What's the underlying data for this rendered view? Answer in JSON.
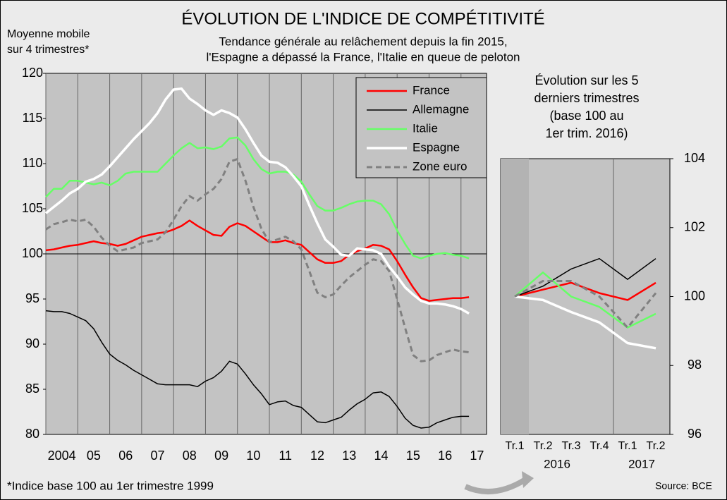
{
  "footnote": "*Indice base 100 au 1er trimestre 1999",
  "source": "Source: BCE",
  "chart_data": [
    {
      "type": "line",
      "title": "ÉVOLUTION DE L'INDICE DE COMPÉTITIVITÉ",
      "subtitle": [
        "Tendance générale au relâchement depuis la fin 2015,",
        "l'Espagne a dépassé la France, l'Italie en queue de peloton"
      ],
      "y_label": [
        "Moyenne mobile",
        "sur 4 trimestres*"
      ],
      "x": [
        2004,
        2004.25,
        2004.5,
        2004.75,
        2005,
        2005.25,
        2005.5,
        2005.75,
        2006,
        2006.25,
        2006.5,
        2006.75,
        2007,
        2007.25,
        2007.5,
        2007.75,
        2008,
        2008.25,
        2008.5,
        2008.75,
        2009,
        2009.25,
        2009.5,
        2009.75,
        2010,
        2010.25,
        2010.5,
        2010.75,
        2011,
        2011.25,
        2011.5,
        2011.75,
        2012,
        2012.25,
        2012.5,
        2012.75,
        2013,
        2013.25,
        2013.5,
        2013.75,
        2014,
        2014.25,
        2014.5,
        2014.75,
        2015,
        2015.25,
        2015.5,
        2015.75,
        2016,
        2016.25,
        2016.5,
        2016.75,
        2017,
        2017.25
      ],
      "xlim": [
        2004,
        2017.8
      ],
      "xticks": [
        {
          "value": 2004,
          "label": "2004"
        },
        {
          "value": 2005,
          "label": "05"
        },
        {
          "value": 2006,
          "label": "06"
        },
        {
          "value": 2007,
          "label": "07"
        },
        {
          "value": 2008,
          "label": "08"
        },
        {
          "value": 2009,
          "label": "09"
        },
        {
          "value": 2010,
          "label": "10"
        },
        {
          "value": 2011,
          "label": "11"
        },
        {
          "value": 2012,
          "label": "12"
        },
        {
          "value": 2013,
          "label": "13"
        },
        {
          "value": 2014,
          "label": "14"
        },
        {
          "value": 2015,
          "label": "15"
        },
        {
          "value": 2016,
          "label": "16"
        },
        {
          "value": 2017,
          "label": "17"
        }
      ],
      "ylim": [
        80,
        120
      ],
      "yticks": [
        80,
        85,
        90,
        95,
        100,
        105,
        110,
        115,
        120
      ],
      "hline": 100,
      "legend": "upper right",
      "series": [
        {
          "name": "France",
          "color": "#ff0000",
          "style": "solid",
          "values": [
            100.4,
            100.5,
            100.7,
            100.9,
            101.0,
            101.2,
            101.4,
            101.2,
            101.1,
            100.9,
            101.1,
            101.5,
            101.9,
            102.1,
            102.3,
            102.4,
            102.7,
            103.1,
            103.7,
            103.1,
            102.6,
            102.1,
            102.0,
            103.0,
            103.4,
            103.1,
            102.5,
            101.9,
            101.3,
            101.3,
            101.5,
            101.2,
            101.0,
            100.2,
            99.4,
            99.0,
            99.0,
            99.2,
            99.9,
            100.3,
            100.6,
            101.0,
            100.9,
            100.5,
            99.2,
            97.7,
            96.3,
            95.1,
            94.8,
            94.9,
            95.0,
            95.1,
            95.1,
            95.2
          ]
        },
        {
          "name": "Allemagne",
          "color": "#000000",
          "style": "thin",
          "values": [
            93.7,
            93.6,
            93.6,
            93.4,
            93.0,
            92.6,
            91.7,
            90.2,
            88.9,
            88.2,
            87.7,
            87.1,
            86.6,
            86.1,
            85.6,
            85.5,
            85.5,
            85.5,
            85.5,
            85.3,
            85.9,
            86.3,
            87.0,
            88.1,
            87.8,
            86.7,
            85.5,
            84.5,
            83.3,
            83.6,
            83.7,
            83.2,
            83.0,
            82.2,
            81.4,
            81.3,
            81.6,
            81.9,
            82.7,
            83.4,
            83.9,
            84.6,
            84.7,
            84.2,
            83.1,
            81.8,
            81.0,
            80.7,
            80.8,
            81.3,
            81.6,
            81.9,
            82.0,
            82.0
          ]
        },
        {
          "name": "Italie",
          "color": "#66ff66",
          "style": "solid",
          "values": [
            106.3,
            107.2,
            107.2,
            108.1,
            108.1,
            107.9,
            107.7,
            107.9,
            107.6,
            108.1,
            108.9,
            109.1,
            109.1,
            109.1,
            109.1,
            110.0,
            110.9,
            111.7,
            112.3,
            111.7,
            111.8,
            111.6,
            111.9,
            112.8,
            112.9,
            112.0,
            110.5,
            109.4,
            108.9,
            109.1,
            109.1,
            108.8,
            108.0,
            106.6,
            105.3,
            104.8,
            104.8,
            105.1,
            105.5,
            105.8,
            105.9,
            105.9,
            105.5,
            104.4,
            102.6,
            101.1,
            99.8,
            99.5,
            99.8,
            100.0,
            100.1,
            99.9,
            99.8,
            99.5
          ]
        },
        {
          "name": "Espagne",
          "color": "#ffffff",
          "style": "thick",
          "values": [
            104.5,
            105.2,
            105.9,
            106.7,
            107.2,
            108.0,
            108.3,
            108.8,
            109.7,
            110.7,
            111.7,
            112.7,
            113.6,
            114.5,
            115.6,
            117.1,
            118.2,
            118.3,
            117.2,
            116.6,
            115.9,
            115.4,
            115.9,
            115.6,
            115.1,
            113.8,
            112.3,
            110.9,
            110.2,
            110.1,
            109.6,
            108.6,
            107.5,
            105.4,
            103.4,
            101.6,
            100.8,
            99.9,
            99.8,
            100.6,
            100.5,
            100.4,
            100.0,
            98.6,
            97.5,
            96.3,
            95.5,
            94.8,
            94.5,
            94.5,
            94.4,
            94.2,
            93.9,
            93.4
          ]
        },
        {
          "name": "Zone euro",
          "color": "#808080",
          "style": "dashed",
          "values": [
            102.7,
            103.3,
            103.5,
            103.8,
            103.6,
            103.8,
            103.0,
            101.8,
            100.9,
            100.3,
            100.5,
            100.7,
            101.2,
            101.4,
            101.6,
            102.4,
            103.8,
            105.3,
            106.4,
            105.9,
            106.6,
            107.2,
            108.3,
            110.2,
            110.5,
            108.1,
            105.2,
            102.8,
            101.3,
            101.6,
            101.9,
            101.4,
            100.5,
            98.1,
            95.7,
            95.2,
            95.5,
            96.5,
            97.4,
            98.1,
            98.8,
            99.4,
            99.2,
            98.1,
            95.0,
            91.8,
            88.8,
            88.1,
            88.2,
            88.8,
            89.1,
            89.4,
            89.2,
            89.1
          ]
        }
      ]
    },
    {
      "type": "line",
      "title": [
        "Évolution sur les 5",
        "derniers trimestres",
        "(base 100 au",
        "1er trim. 2016)"
      ],
      "categories": [
        "Tr.1",
        "Tr.2",
        "Tr.3",
        "Tr.4",
        "Tr.1",
        "Tr.2"
      ],
      "category_groups": [
        {
          "label": "2016",
          "count": 4
        },
        {
          "label": "2017",
          "count": 2
        }
      ],
      "ylim": [
        96,
        104
      ],
      "yticks": [
        96,
        98,
        100,
        102,
        104
      ],
      "series": [
        {
          "color": "#ff0000",
          "style": "solid",
          "values": [
            100,
            100.2,
            100.4,
            100.1,
            99.9,
            100.4
          ]
        },
        {
          "color": "#000000",
          "style": "thin",
          "values": [
            100,
            100.3,
            100.8,
            101.1,
            100.5,
            101.1
          ]
        },
        {
          "color": "#66ff66",
          "style": "solid",
          "values": [
            100,
            100.7,
            100.0,
            99.7,
            99.1,
            99.5
          ]
        },
        {
          "color": "#ffffff",
          "style": "thick",
          "values": [
            100,
            99.9,
            99.55,
            99.25,
            98.65,
            98.5
          ]
        },
        {
          "color": "#808080",
          "style": "dashed",
          "values": [
            100,
            100.45,
            100.45,
            100.0,
            99.1,
            100.1
          ]
        }
      ]
    }
  ]
}
